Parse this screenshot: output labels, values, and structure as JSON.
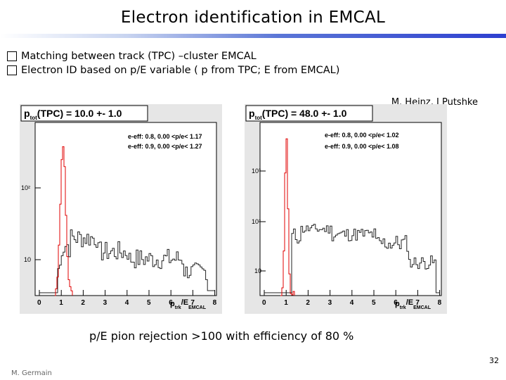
{
  "title": "Electron identification in EMCAL",
  "bullets": [
    "Matching between track (TPC) –cluster EMCAL",
    "Electron ID based on p/E variable ( p from TPC; E from EMCAL)"
  ],
  "authors": "M. Heinz, J Putshke",
  "plots": [
    {
      "header": "p_tot(TPC) = 10.0 +- 1.0",
      "header_p": "p",
      "header_sub": "tot",
      "header_rest": "(TPC) = 10.0 +- 1.0",
      "legend": [
        "e-eff: 0.8, 0.00 <p/e< 1.17",
        "e-eff: 0.9, 0.00 <p/e< 1.27"
      ],
      "y_ticks": [
        "10²",
        "10"
      ],
      "x_ticks": [
        "0",
        "1",
        "2",
        "3",
        "4",
        "5",
        "6",
        "7",
        "8"
      ],
      "x_label_p": "p",
      "x_label_sub1": "trk",
      "x_label_mid": "/E",
      "x_label_sub2": "EMCAL"
    },
    {
      "header": "p_tot(TPC) = 48.0 +- 1.0",
      "header_p": "p",
      "header_sub": "tot",
      "header_rest": "(TPC) = 48.0 +- 1.0",
      "legend": [
        "e-eff: 0.8, 0.00 <p/e< 1.02",
        "e-eff: 0.9, 0.00 <p/e< 1.08"
      ],
      "y_ticks": [
        "10³",
        "10²",
        "10"
      ],
      "x_ticks": [
        "0",
        "1",
        "2",
        "3",
        "4",
        "5",
        "6",
        "7",
        "8"
      ],
      "x_label_p": "p",
      "x_label_sub1": "trk",
      "x_label_mid": "/E",
      "x_label_sub2": "EMCAL"
    }
  ],
  "conclusion": "p/E pion rejection >100 with efficiency of 80 %",
  "page_number": "32",
  "presenter": "M. Germain",
  "colors": {
    "pion": "#222222",
    "electron": "#e00000"
  }
}
